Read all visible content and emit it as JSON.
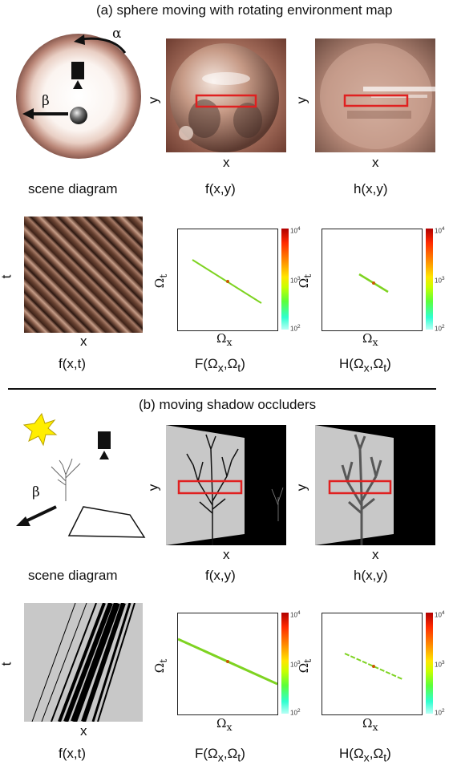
{
  "section_a": {
    "title": "(a)  sphere moving with rotating environment map",
    "diagram_caption": "scene diagram",
    "alpha_label": "α",
    "beta_label": "β",
    "f_xy_caption": "f(x,y)",
    "h_xy_caption": "h(x,y)",
    "f_xt_caption": "f(x,t)",
    "F_caption": "F(Ω",
    "H_caption": "H(Ω"
  },
  "section_b": {
    "title": "(b)  moving shadow occluders",
    "diagram_caption": "scene diagram",
    "beta_label": "β",
    "f_xy_caption": "f(x,y)",
    "h_xy_caption": "h(x,y)",
    "f_xt_caption": "f(x,t)"
  },
  "axes": {
    "x": "x",
    "y": "y",
    "t": "t",
    "omega_x": "Ω",
    "omega_t": "Ω",
    "sub_x": "x",
    "sub_t": "t",
    "comma": ","
  },
  "colorbar": {
    "top": "10",
    "mid": "10",
    "bottom": "10",
    "top_exp": "4",
    "mid_exp": "3",
    "bottom_exp": "2"
  },
  "colors": {
    "highlight_box": "#e02020",
    "spectrum_line": "#7ed321",
    "sun": "#ffee00"
  }
}
